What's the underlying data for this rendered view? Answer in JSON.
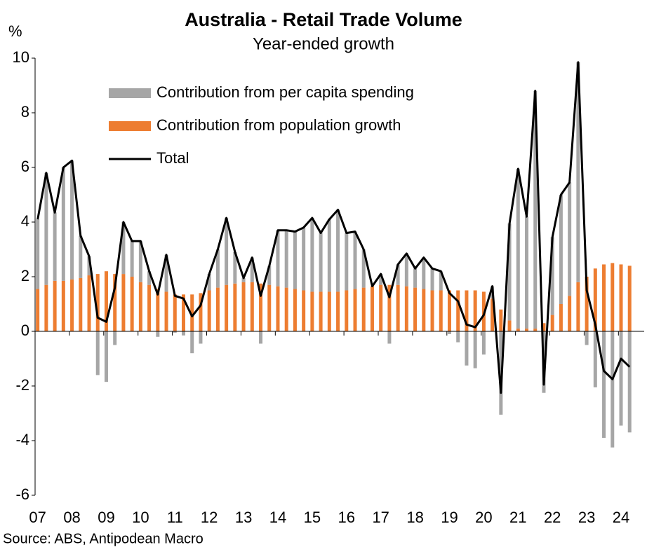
{
  "chart_data": {
    "type": "bar-line",
    "title": "Australia - Retail Trade Volume",
    "subtitle": "Year-ended growth",
    "y_unit": "%",
    "source": "Source: ABS, Antipodean Macro",
    "categories": [
      "07",
      null,
      null,
      null,
      "08",
      null,
      null,
      null,
      "09",
      null,
      null,
      null,
      "10",
      null,
      null,
      null,
      "11",
      null,
      null,
      null,
      "12",
      null,
      null,
      null,
      "13",
      null,
      null,
      null,
      "14",
      null,
      null,
      null,
      "15",
      null,
      null,
      null,
      "16",
      null,
      null,
      null,
      "17",
      null,
      null,
      null,
      "18",
      null,
      null,
      null,
      "19",
      null,
      null,
      null,
      "20",
      null,
      null,
      null,
      "21",
      null,
      null,
      null,
      "22",
      null,
      null,
      null,
      "23",
      null,
      null,
      null,
      "24",
      null
    ],
    "series": [
      {
        "name": "Contribution from per capita spending",
        "color": "#a6a6a6",
        "kind": "bar",
        "values": [
          2.55,
          4.1,
          2.5,
          4.15,
          4.35,
          1.55,
          0.7,
          -1.6,
          -1.85,
          -0.5,
          1.9,
          1.3,
          1.5,
          0.5,
          -0.2,
          1.35,
          -0.05,
          -0.15,
          -0.8,
          -0.45,
          0.6,
          1.4,
          2.45,
          1.15,
          0.15,
          0.9,
          -0.45,
          0.7,
          2.05,
          2.1,
          2.1,
          2.3,
          2.7,
          2.15,
          2.65,
          3.0,
          2.1,
          2.1,
          1.4,
          0,
          0.4,
          -0.45,
          0.75,
          1.2,
          0.7,
          1.15,
          0.8,
          0.7,
          -0.1,
          -0.4,
          -1.25,
          -1.35,
          -0.85,
          0.45,
          -3.05,
          3.55,
          5.85,
          4.1,
          8.7,
          -2.25,
          2.85,
          4.0,
          4.15,
          8.05,
          -0.5,
          -2.05,
          -3.9,
          -4.25,
          -3.45,
          -3.7
        ]
      },
      {
        "name": "Contribution from population growth",
        "color": "#ed7d31",
        "kind": "bar",
        "values": [
          1.55,
          1.7,
          1.85,
          1.85,
          1.9,
          1.95,
          2.05,
          2.1,
          2.2,
          2.1,
          2.1,
          2.0,
          1.8,
          1.7,
          1.55,
          1.45,
          1.35,
          1.35,
          1.35,
          1.4,
          1.5,
          1.6,
          1.7,
          1.75,
          1.8,
          1.8,
          1.75,
          1.7,
          1.65,
          1.6,
          1.55,
          1.5,
          1.45,
          1.45,
          1.45,
          1.45,
          1.5,
          1.55,
          1.6,
          1.65,
          1.7,
          1.7,
          1.7,
          1.65,
          1.6,
          1.55,
          1.5,
          1.5,
          1.5,
          1.5,
          1.5,
          1.5,
          1.45,
          1.2,
          0.8,
          0.4,
          0.1,
          0.1,
          0.1,
          0.3,
          0.6,
          1.0,
          1.3,
          1.8,
          2.0,
          2.3,
          2.45,
          2.5,
          2.45,
          2.4
        ]
      },
      {
        "name": "Total",
        "color": "#000000",
        "kind": "line",
        "values": [
          4.1,
          5.8,
          4.35,
          6.0,
          6.25,
          3.5,
          2.75,
          0.5,
          0.35,
          1.6,
          4.0,
          3.3,
          3.3,
          2.2,
          1.35,
          2.8,
          1.3,
          1.2,
          0.55,
          0.95,
          2.1,
          3.0,
          4.15,
          2.9,
          1.95,
          2.7,
          1.3,
          2.4,
          3.7,
          3.7,
          3.65,
          3.8,
          4.15,
          3.6,
          4.1,
          4.45,
          3.6,
          3.65,
          3.0,
          1.65,
          2.1,
          1.25,
          2.45,
          2.85,
          2.3,
          2.7,
          2.3,
          2.2,
          1.4,
          1.1,
          0.25,
          0.15,
          0.6,
          1.65,
          -2.25,
          3.95,
          5.95,
          4.2,
          8.8,
          -1.95,
          3.45,
          5.0,
          5.45,
          9.85,
          1.5,
          0.25,
          -1.45,
          -1.75,
          -1.0,
          -1.3
        ]
      }
    ],
    "ylim": [
      -6,
      10
    ],
    "yticks": [
      -6,
      -4,
      -2,
      0,
      2,
      4,
      6,
      8,
      10
    ],
    "grid": false,
    "legend": "upper left"
  }
}
